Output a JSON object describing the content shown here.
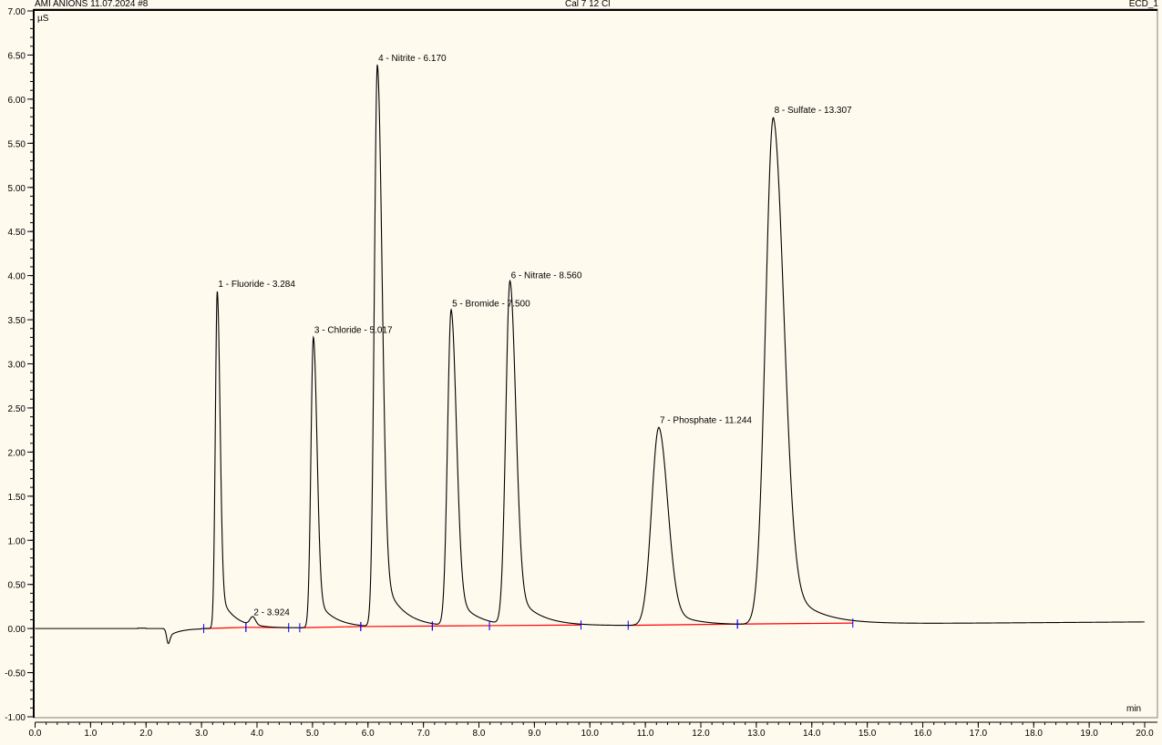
{
  "header": {
    "left": "AMI ANIONS 11.07.2024 #8",
    "center": "Cal 7 12 Cl",
    "right": "ECD_1"
  },
  "chart_data": {
    "type": "line",
    "title": "",
    "xlabel": "min",
    "ylabel": "µS",
    "xlim": [
      0,
      20
    ],
    "ylim": [
      -1,
      7
    ],
    "x_ticks": [
      "0.0",
      "1.0",
      "2.0",
      "3.0",
      "4.0",
      "5.0",
      "6.0",
      "7.0",
      "8.0",
      "9.0",
      "10.0",
      "11.0",
      "12.0",
      "13.0",
      "14.0",
      "15.0",
      "16.0",
      "17.0",
      "18.0",
      "19.0",
      "20.0"
    ],
    "y_ticks": [
      "-1.00",
      "-0.50",
      "0.00",
      "0.50",
      "1.00",
      "1.50",
      "2.00",
      "2.50",
      "3.00",
      "3.50",
      "4.00",
      "4.50",
      "5.00",
      "5.50",
      "6.00",
      "6.50",
      "7.00"
    ],
    "grid": false,
    "colors": {
      "signal": "#000000",
      "baseline": "#ff0000",
      "delimiter": "#0000ff",
      "background": "#fffaee"
    },
    "peaks": [
      {
        "label": "1 - Fluoride - 3.284",
        "rt": 3.284,
        "height": 3.82,
        "start": 3.04,
        "end": 3.8
      },
      {
        "label": "2 - 3.924",
        "rt": 3.924,
        "height": 0.1,
        "start": 3.8,
        "end": 4.57
      },
      {
        "label": "3 - Chloride - 5.017",
        "rt": 5.017,
        "height": 3.3,
        "start": 4.77,
        "end": 5.87
      },
      {
        "label": "4 - Nitrite - 6.170",
        "rt": 6.17,
        "height": 6.38,
        "start": 5.87,
        "end": 7.16
      },
      {
        "label": "5 - Bromide - 7.500",
        "rt": 7.5,
        "height": 3.6,
        "start": 7.16,
        "end": 8.19
      },
      {
        "label": "6 - Nitrate - 8.560",
        "rt": 8.56,
        "height": 3.92,
        "start": 8.19,
        "end": 9.84
      },
      {
        "label": "7 - Phosphate - 11.244",
        "rt": 11.244,
        "height": 2.28,
        "start": 10.69,
        "end": 12.66
      },
      {
        "label": "8 - Sulfate - 13.307",
        "rt": 13.307,
        "height": 5.79,
        "start": 12.66,
        "end": 14.74
      }
    ]
  }
}
